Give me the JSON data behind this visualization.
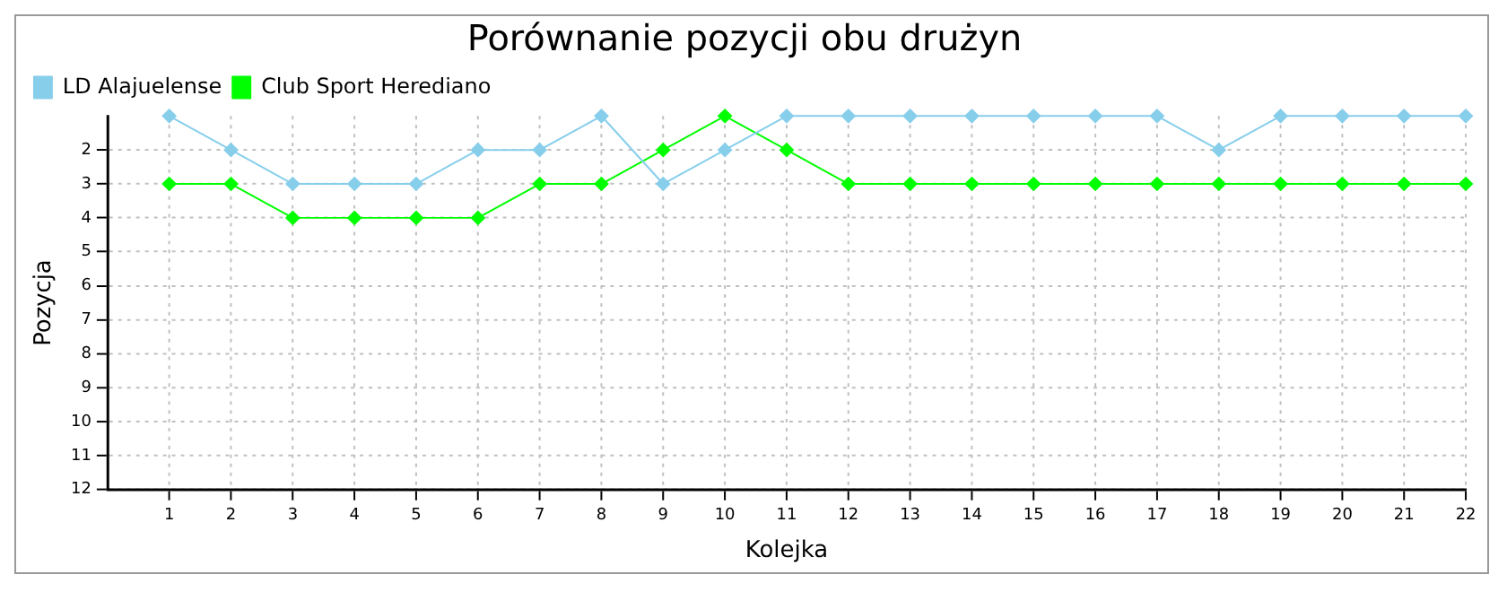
{
  "chart_data": {
    "type": "line",
    "title": "Porównanie pozycji obu drużyn",
    "xlabel": "Kolejka",
    "ylabel": "Pozycja",
    "x": [
      1,
      2,
      3,
      4,
      5,
      6,
      7,
      8,
      9,
      10,
      11,
      12,
      13,
      14,
      15,
      16,
      17,
      18,
      19,
      20,
      21,
      22
    ],
    "series": [
      {
        "name": "LD Alajuelense",
        "color": "#87ceeb",
        "values": [
          1,
          2,
          3,
          3,
          3,
          2,
          2,
          1,
          3,
          2,
          1,
          1,
          1,
          1,
          1,
          1,
          1,
          2,
          1,
          1,
          1,
          1
        ]
      },
      {
        "name": "Club Sport Herediano",
        "color": "#00ff00",
        "values": [
          3,
          3,
          4,
          4,
          4,
          4,
          3,
          3,
          2,
          1,
          2,
          3,
          3,
          3,
          3,
          3,
          3,
          3,
          3,
          3,
          3,
          3
        ]
      }
    ],
    "xlim": [
      0,
      22
    ],
    "xticks": [
      1,
      2,
      3,
      4,
      5,
      6,
      7,
      8,
      9,
      10,
      11,
      12,
      13,
      14,
      15,
      16,
      17,
      18,
      19,
      20,
      21,
      22
    ],
    "ylim": [
      12,
      1
    ],
    "yticks": [
      2,
      3,
      4,
      5,
      6,
      7,
      8,
      9,
      10,
      11,
      12
    ],
    "grid": true,
    "legend": "top left",
    "marker": "diamond",
    "line_style": "solid"
  }
}
